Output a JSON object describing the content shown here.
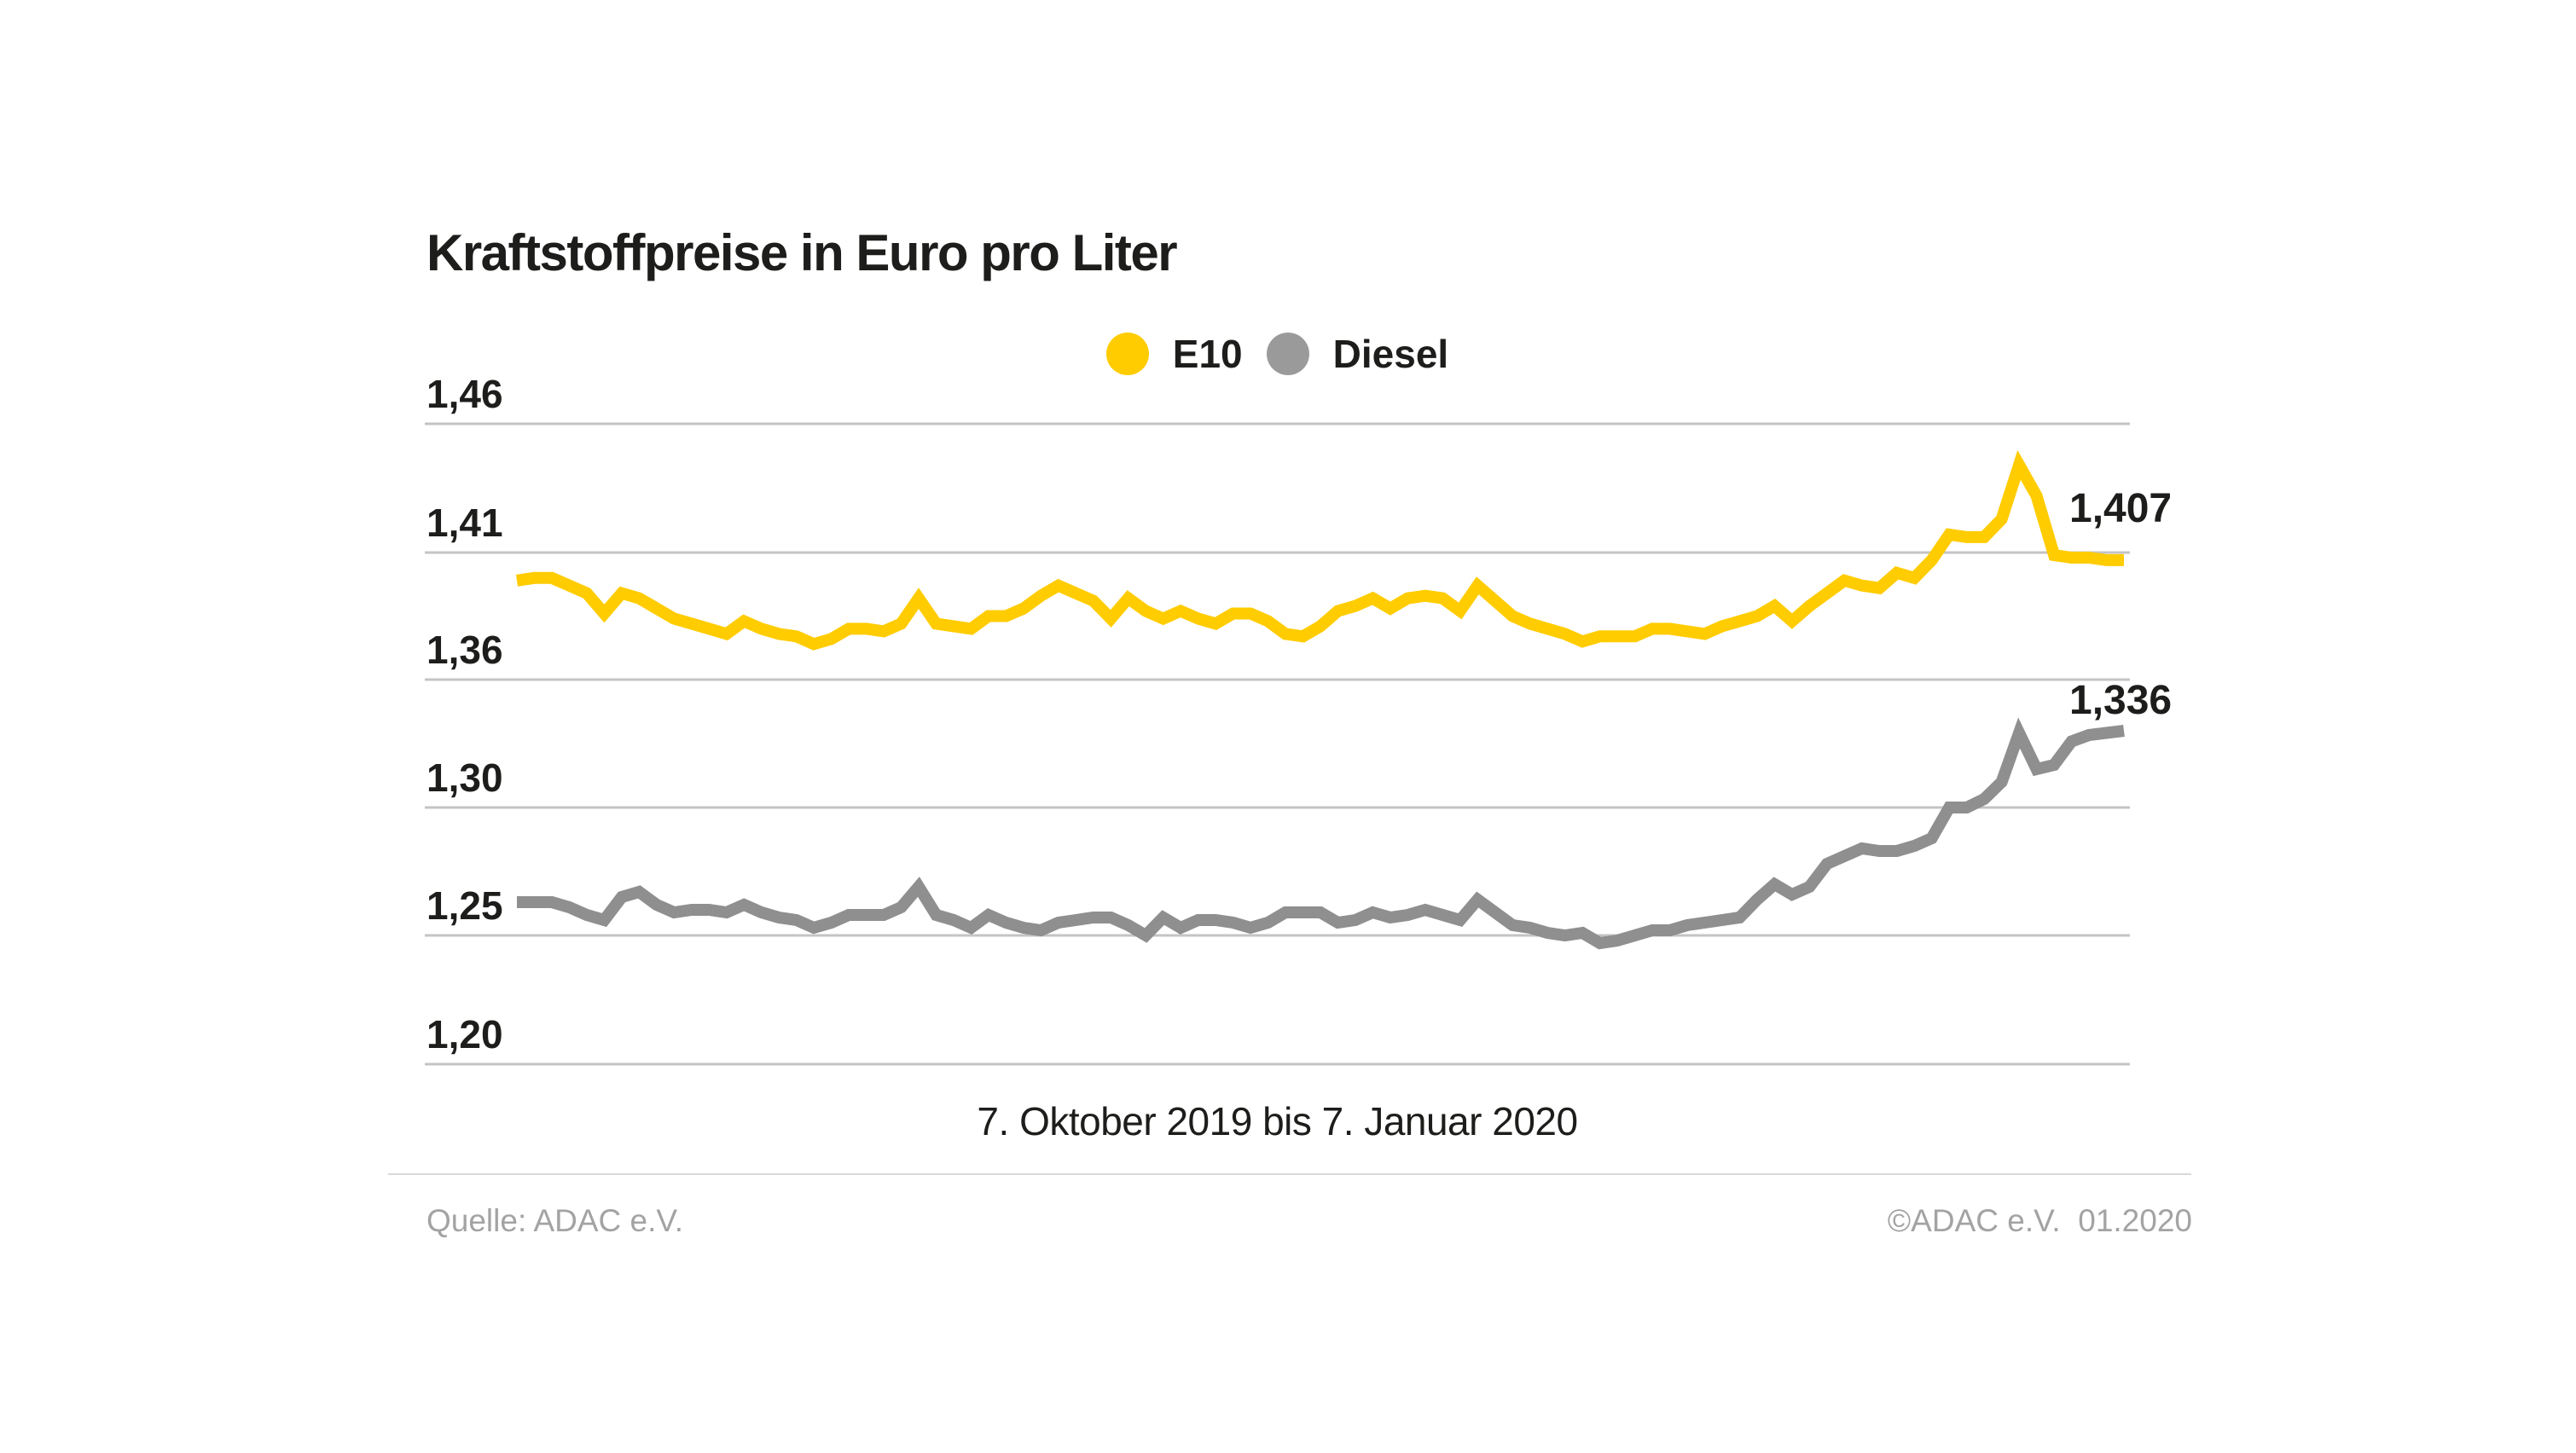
{
  "title": "Kraftstoffpreise in Euro pro Liter",
  "legend": [
    {
      "label": "E10",
      "color": "#FFCC00"
    },
    {
      "label": "Diesel",
      "color": "#9A9A9A"
    }
  ],
  "caption": "7. Oktober 2019 bis 7. Januar 2020",
  "footer": {
    "source": "Quelle: ADAC e.V.",
    "copyright": "©ADAC e.V.  01.2020"
  },
  "colors": {
    "e10": "#FFCC00",
    "diesel": "#8F8F8F",
    "grid": "#C4C4C4",
    "text": "#1D1D1B",
    "muted": "#A3A3A3",
    "divider": "#D9D9D9"
  },
  "chart_data": {
    "type": "line",
    "title": "Kraftstoffpreise in Euro pro Liter",
    "xlabel": "7. Oktober 2019 bis 7. Januar 2020",
    "ylabel": "Euro pro Liter",
    "x_start": "7. Oktober 2019",
    "x_end": "7. Januar 2020",
    "grid": true,
    "legend_position": "top-center",
    "y_ticks": [
      "1,46",
      "1,41",
      "1,36",
      "1,30",
      "1,25",
      "1,20"
    ],
    "y_tick_values": [
      1.46,
      1.41,
      1.36,
      1.3,
      1.25,
      1.2
    ],
    "y_scale_note": "gridlines evenly spaced despite uneven value steps (broken scale between 1,36 and 1,30)",
    "end_labels": {
      "e10": "1,407",
      "diesel": "1,336"
    },
    "series": [
      {
        "name": "E10",
        "color": "#FFCC00",
        "end_value": 1.407,
        "values": [
          1.399,
          1.4,
          1.4,
          1.397,
          1.394,
          1.386,
          1.394,
          1.392,
          1.388,
          1.384,
          1.382,
          1.38,
          1.378,
          1.383,
          1.38,
          1.378,
          1.377,
          1.374,
          1.376,
          1.38,
          1.38,
          1.379,
          1.382,
          1.392,
          1.382,
          1.381,
          1.38,
          1.385,
          1.385,
          1.388,
          1.393,
          1.397,
          1.394,
          1.391,
          1.384,
          1.392,
          1.387,
          1.384,
          1.387,
          1.384,
          1.382,
          1.386,
          1.386,
          1.383,
          1.378,
          1.377,
          1.381,
          1.387,
          1.389,
          1.392,
          1.388,
          1.392,
          1.393,
          1.392,
          1.387,
          1.397,
          1.391,
          1.385,
          1.382,
          1.38,
          1.378,
          1.375,
          1.377,
          1.377,
          1.377,
          1.38,
          1.38,
          1.379,
          1.378,
          1.381,
          1.383,
          1.385,
          1.389,
          1.383,
          1.389,
          1.394,
          1.399,
          1.397,
          1.396,
          1.402,
          1.4,
          1.407,
          1.417,
          1.416,
          1.416,
          1.423,
          1.444,
          1.432,
          1.409,
          1.408,
          1.408,
          1.407,
          1.407
        ]
      },
      {
        "name": "Diesel",
        "color": "#8F8F8F",
        "end_value": 1.336,
        "values": [
          1.263,
          1.263,
          1.263,
          1.261,
          1.258,
          1.256,
          1.265,
          1.267,
          1.262,
          1.259,
          1.26,
          1.26,
          1.259,
          1.262,
          1.259,
          1.257,
          1.256,
          1.253,
          1.255,
          1.258,
          1.258,
          1.258,
          1.261,
          1.269,
          1.258,
          1.256,
          1.253,
          1.258,
          1.255,
          1.253,
          1.252,
          1.255,
          1.256,
          1.257,
          1.257,
          1.254,
          1.25,
          1.257,
          1.253,
          1.256,
          1.256,
          1.255,
          1.253,
          1.255,
          1.259,
          1.259,
          1.259,
          1.255,
          1.256,
          1.259,
          1.257,
          1.258,
          1.26,
          1.258,
          1.256,
          1.264,
          1.259,
          1.254,
          1.253,
          1.251,
          1.25,
          1.251,
          1.247,
          1.248,
          1.25,
          1.252,
          1.252,
          1.254,
          1.255,
          1.256,
          1.257,
          1.264,
          1.27,
          1.266,
          1.269,
          1.278,
          1.281,
          1.284,
          1.283,
          1.283,
          1.285,
          1.288,
          1.3,
          1.3,
          1.304,
          1.312,
          1.335,
          1.318,
          1.32,
          1.331,
          1.334,
          1.335,
          1.336
        ]
      }
    ]
  }
}
